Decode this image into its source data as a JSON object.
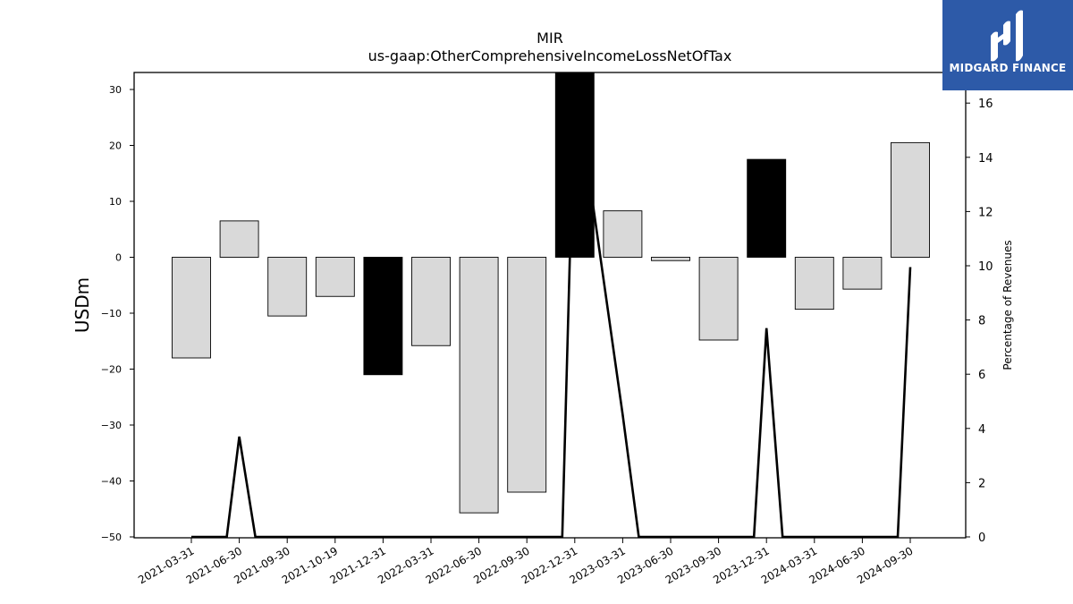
{
  "chart_data": {
    "type": "bar",
    "title": "MIR",
    "subtitle": "us-gaap:OtherComprehensiveIncomeLossNetOfTax",
    "ylabel": "USDm",
    "y2label": "Percentage of Revenues",
    "categories": [
      "2021-03-31",
      "2021-06-30",
      "2021-09-30",
      "2021-10-19",
      "2021-12-31",
      "2022-03-31",
      "2022-06-30",
      "2022-09-30",
      "2022-12-31",
      "2023-03-31",
      "2023-06-30",
      "2023-09-30",
      "2023-12-31",
      "2024-03-31",
      "2024-06-30",
      "2024-09-30"
    ],
    "series": [
      {
        "values": [
          -18,
          6.5,
          -10.5,
          -7,
          -21,
          -15.8,
          -45.7,
          -42,
          34,
          8.3,
          -0.6,
          -14.8,
          17.5,
          -9.3,
          -5.7,
          20.5
        ],
        "highlighted": [
          false,
          false,
          false,
          false,
          true,
          false,
          false,
          false,
          true,
          false,
          false,
          false,
          true,
          false,
          false,
          false
        ]
      },
      {
        "axis": "right",
        "values": [
          0,
          3.7,
          0,
          0,
          0,
          0,
          0,
          0,
          17,
          4.5,
          0,
          0,
          7.7,
          0,
          0,
          9.95
        ]
      }
    ],
    "ylim": [
      -50,
      33
    ],
    "y2lim": [
      0,
      17
    ],
    "yticks": [
      -50,
      -40,
      -30,
      -20,
      -10,
      0,
      10,
      20,
      30
    ],
    "y2ticks": [
      0,
      2,
      4,
      6,
      8,
      10,
      12,
      14,
      16
    ],
    "grid": false,
    "bar_color": "#d9d9d9",
    "highlight_color": "#000000",
    "line_color": "#000000"
  },
  "logo": {
    "text": "MIDGARD FINANCE",
    "background": "#2d5aa8"
  }
}
